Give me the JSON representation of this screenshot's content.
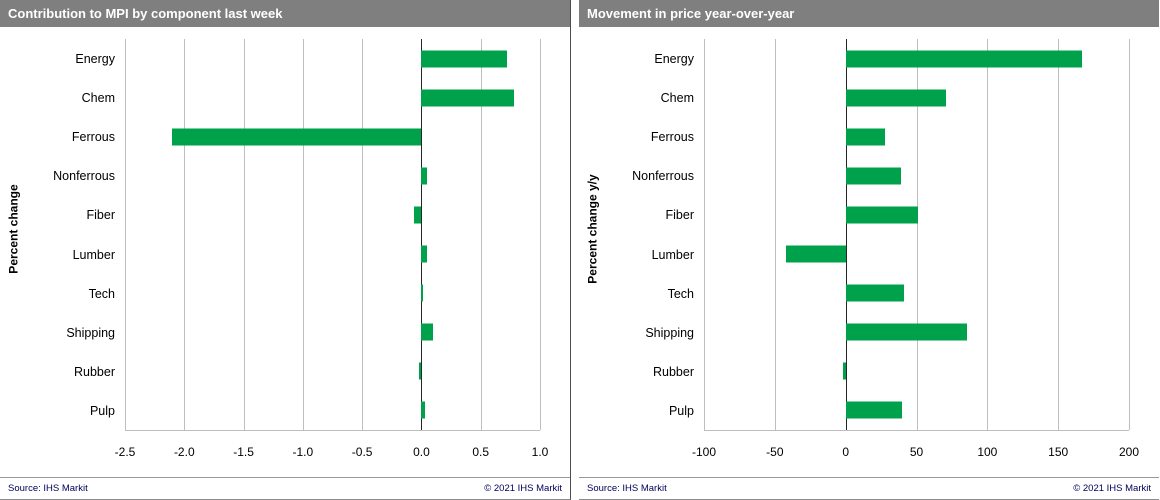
{
  "colors": {
    "bar": "#00A14B",
    "header_bg": "#7F7F7F",
    "header_text": "#FFFFFF",
    "gridline": "#BFBFBF",
    "zero_line": "#262626",
    "footer_text": "#00005A"
  },
  "footer": {
    "source": "Source:  IHS Markit",
    "copyright": "© 2021  IHS Markit"
  },
  "chart_data": [
    {
      "type": "bar",
      "orientation": "horizontal",
      "title": "Contribution to MPI by component last week",
      "ylabel": "Percent change",
      "categories": [
        "Energy",
        "Chem",
        "Ferrous",
        "Nonferrous",
        "Fiber",
        "Lumber",
        "Tech",
        "Shipping",
        "Rubber",
        "Pulp"
      ],
      "values": [
        0.72,
        0.78,
        -2.1,
        0.05,
        -0.06,
        0.05,
        0.01,
        0.1,
        -0.02,
        0.03
      ],
      "xlim": [
        -2.5,
        1.0
      ],
      "xticks": [
        -2.5,
        -2.0,
        -1.5,
        -1.0,
        -0.5,
        0,
        0.5,
        1.0
      ],
      "xtick_labels": [
        "-2.5",
        "-2.0",
        "-1.5",
        "-1.0",
        "-0.5",
        "0.0",
        "0.5",
        "1.0"
      ],
      "grid": true,
      "legend": false
    },
    {
      "type": "bar",
      "orientation": "horizontal",
      "title": "Movement in price year-over-year",
      "ylabel": "Percent change y/y",
      "categories": [
        "Energy",
        "Chem",
        "Ferrous",
        "Nonferrous",
        "Fiber",
        "Lumber",
        "Tech",
        "Shipping",
        "Rubber",
        "Pulp"
      ],
      "values": [
        167,
        71,
        28,
        39,
        51,
        -42,
        41,
        86,
        -2,
        40
      ],
      "xlim": [
        -100,
        200
      ],
      "xticks": [
        -100,
        -50,
        0,
        50,
        100,
        150,
        200
      ],
      "xtick_labels": [
        "-100",
        "-50",
        "0",
        "50",
        "100",
        "150",
        "200"
      ],
      "grid": true,
      "legend": false
    }
  ]
}
